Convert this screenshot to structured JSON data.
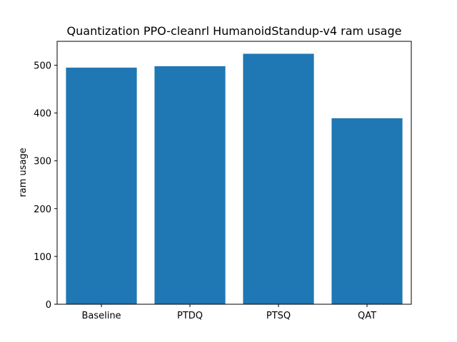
{
  "chart_data": {
    "type": "bar",
    "title": "Quantization PPO-cleanrl HumanoidStandup-v4 ram usage",
    "xlabel": "",
    "ylabel": "ram usage",
    "categories": [
      "Baseline",
      "PTDQ",
      "PTSQ",
      "QAT"
    ],
    "values": [
      495,
      498,
      524,
      389
    ],
    "ylim": [
      0,
      550
    ],
    "yticks": [
      0,
      100,
      200,
      300,
      400,
      500
    ],
    "ytick_labels": [
      "0",
      "100",
      "200",
      "300",
      "400",
      "500"
    ],
    "grid": false,
    "bar_color": "#1f77b4"
  }
}
